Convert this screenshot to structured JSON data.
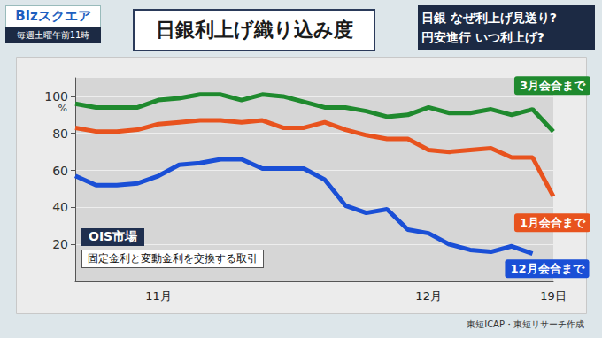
{
  "program": {
    "name": "Bizスクエア",
    "schedule": "毎週土曜午前11時"
  },
  "headlines": [
    "日銀 なぜ利上げ見送り?",
    "円安進行 いつ利上げ?"
  ],
  "chart_data": {
    "type": "line",
    "title": "日銀利上げ織り込み度",
    "categories": [
      null,
      null,
      null,
      null,
      "11月",
      null,
      null,
      null,
      null,
      null,
      null,
      null,
      null,
      null,
      null,
      null,
      null,
      "12月",
      null,
      null,
      null,
      null,
      null,
      "19日"
    ],
    "series": [
      {
        "name": "3月会合まで",
        "color": "#1f8a2e",
        "values": [
          96,
          94,
          94,
          94,
          98,
          99,
          101,
          101,
          98,
          101,
          100,
          97,
          94,
          94,
          92,
          89,
          90,
          94,
          91,
          91,
          93,
          90,
          93,
          81
        ]
      },
      {
        "name": "1月会合まで",
        "color": "#e8531e",
        "values": [
          83,
          81,
          81,
          82,
          85,
          86,
          87,
          87,
          86,
          87,
          83,
          83,
          86,
          82,
          79,
          77,
          77,
          71,
          70,
          71,
          72,
          67,
          67,
          46
        ]
      },
      {
        "name": "12月会合まで",
        "color": "#1a4fd6",
        "values": [
          57,
          52,
          52,
          53,
          57,
          63,
          64,
          66,
          66,
          61,
          61,
          61,
          55,
          41,
          37,
          39,
          28,
          26,
          20,
          17,
          16,
          19,
          15,
          null
        ]
      }
    ],
    "ylim": [
      0,
      110
    ],
    "yticks": [
      20,
      40,
      60,
      80,
      100
    ],
    "ylabel": "%",
    "grid": true,
    "annotations": [
      {
        "title": "OIS市場",
        "text": "固定金利と変動金利を交換する取引"
      }
    ],
    "source": "東短ICAP・東短リサーチ作成"
  }
}
